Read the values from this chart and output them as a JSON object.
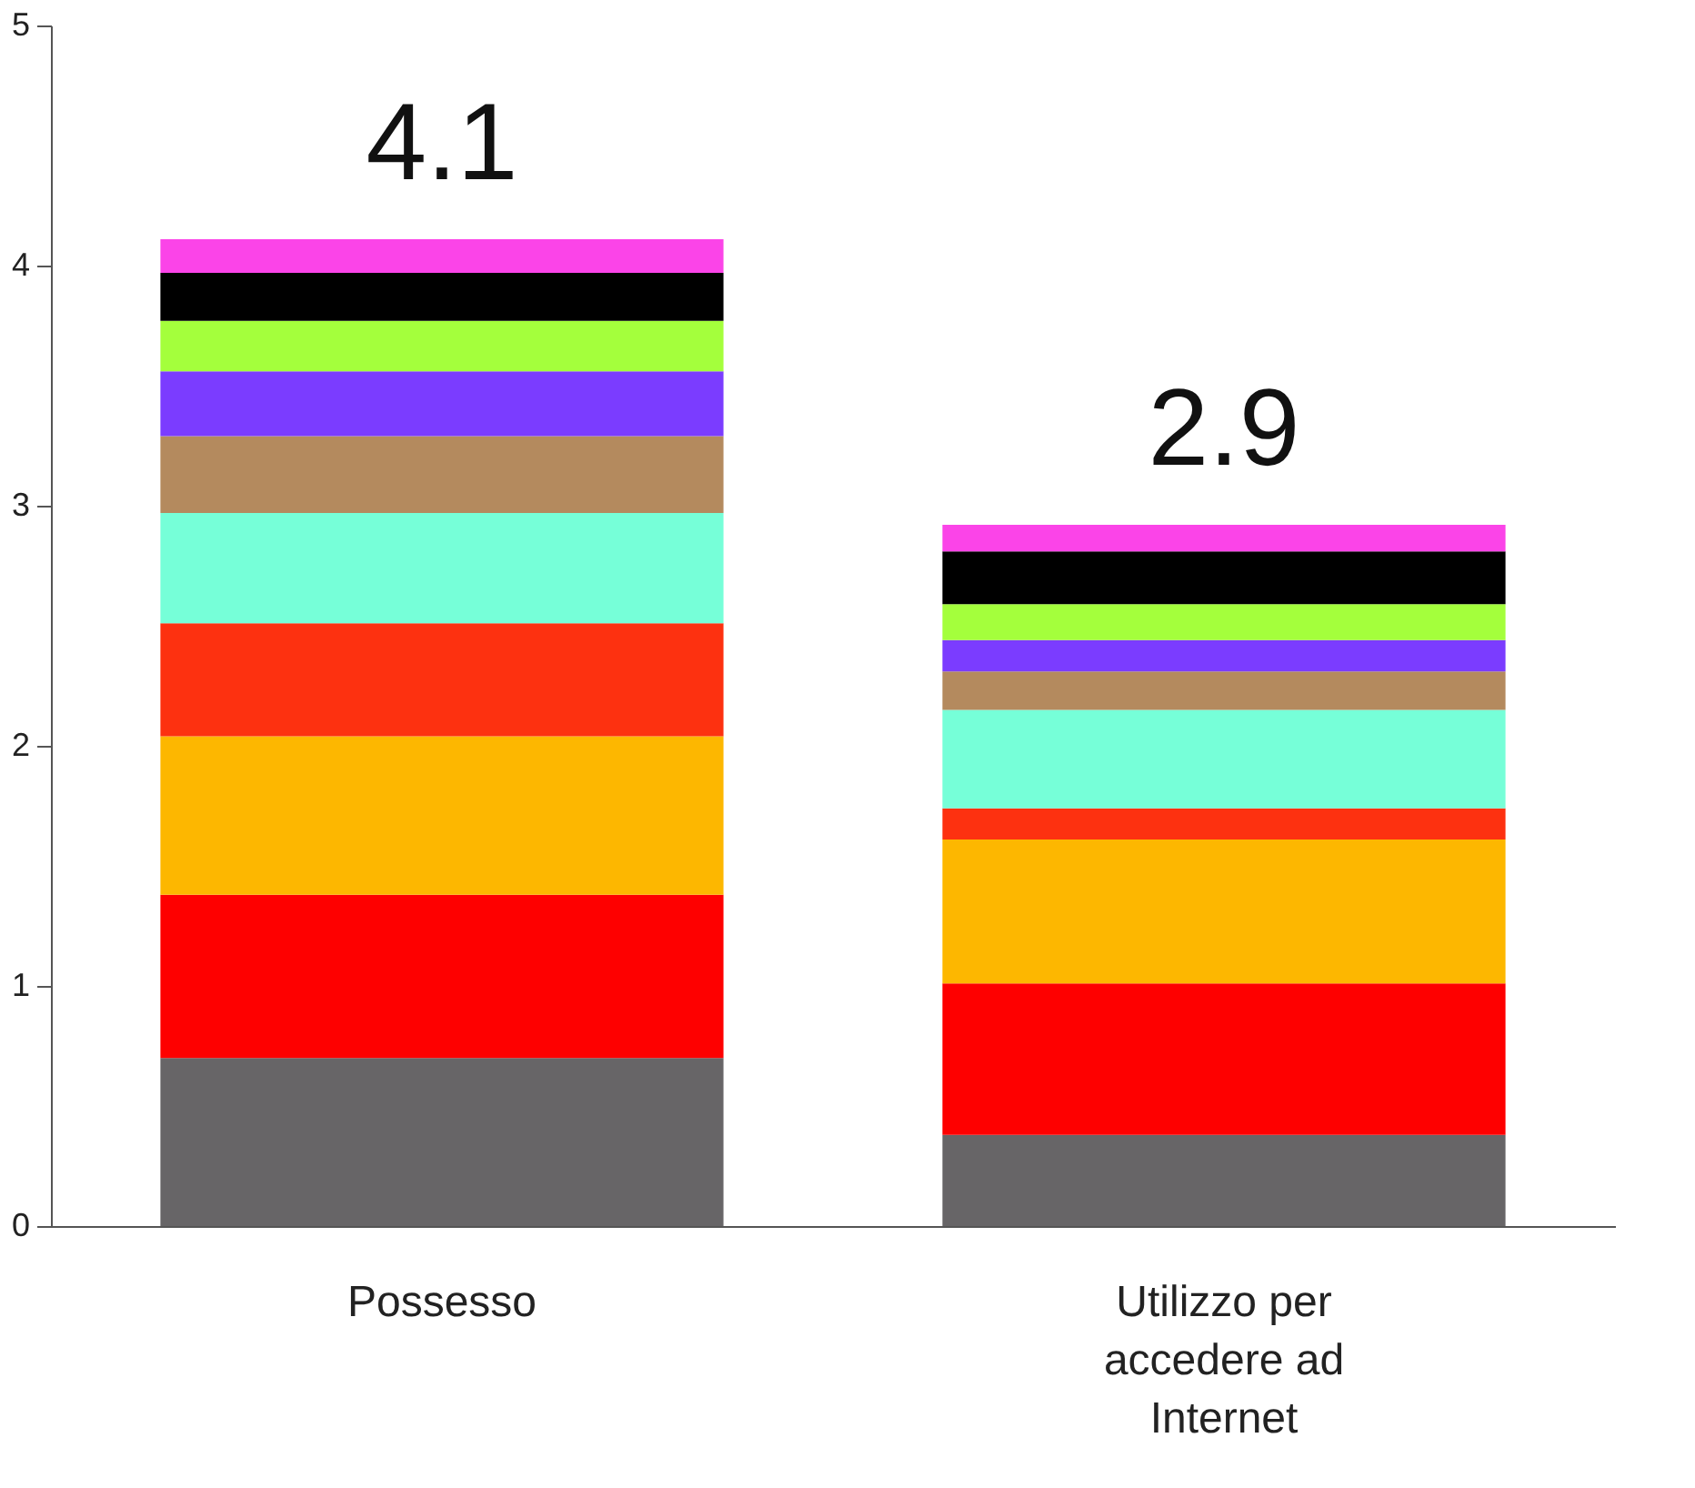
{
  "chart_data": {
    "type": "bar",
    "stacked": true,
    "categories": [
      "Possesso",
      "Utilizzo per accedere ad Internet"
    ],
    "series": [
      {
        "color": "#676567",
        "values": [
          0.7,
          0.38
        ]
      },
      {
        "color": "#fe0000",
        "values": [
          0.68,
          0.63
        ]
      },
      {
        "color": "#fdb700",
        "values": [
          0.66,
          0.6
        ]
      },
      {
        "color": "#fd3110",
        "values": [
          0.47,
          0.13
        ]
      },
      {
        "color": "#76ffd8",
        "values": [
          0.46,
          0.41
        ]
      },
      {
        "color": "#b48a5e",
        "values": [
          0.32,
          0.16
        ]
      },
      {
        "color": "#7b3cff",
        "values": [
          0.27,
          0.13
        ]
      },
      {
        "color": "#a4ff3c",
        "values": [
          0.21,
          0.15
        ]
      },
      {
        "color": "#000000",
        "values": [
          0.2,
          0.22
        ]
      },
      {
        "color": "#fb44e8",
        "values": [
          0.14,
          0.11
        ]
      }
    ],
    "totals": [
      "4.1",
      "2.9"
    ],
    "ylim": [
      0,
      5
    ],
    "yticks": [
      0,
      1,
      2,
      3,
      4,
      5
    ],
    "grid": false,
    "legend": false
  }
}
